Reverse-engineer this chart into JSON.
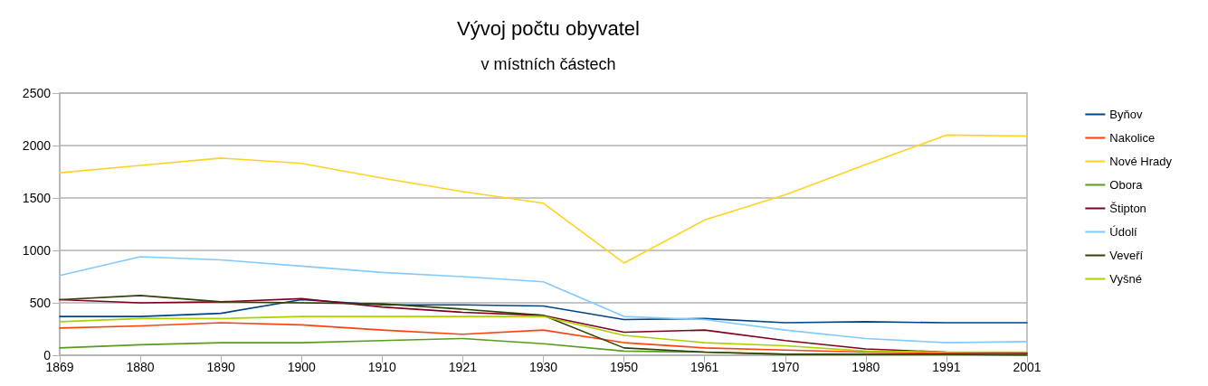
{
  "chart_data": {
    "type": "line",
    "title": "Vývoj počtu obyvatel",
    "subtitle": "v místních částech",
    "categories": [
      "1869",
      "1880",
      "1890",
      "1900",
      "1910",
      "1921",
      "1930",
      "1950",
      "1961",
      "1970",
      "1980",
      "1991",
      "2001"
    ],
    "ylim": [
      0,
      2500
    ],
    "yticks": [
      0,
      500,
      1000,
      1500,
      2000,
      2500
    ],
    "grid": "y",
    "legend": "right",
    "marker": "none",
    "line_style": "solid",
    "series": [
      {
        "name": "Byňov",
        "color": "#004586",
        "values": [
          370,
          370,
          400,
          530,
          480,
          480,
          470,
          340,
          350,
          310,
          320,
          310,
          310
        ]
      },
      {
        "name": "Nakolice",
        "color": "#ff420e",
        "values": [
          260,
          280,
          310,
          290,
          240,
          200,
          240,
          120,
          70,
          50,
          30,
          20,
          20
        ]
      },
      {
        "name": "Nové Hrady",
        "color": "#ffd320",
        "values": [
          1740,
          1810,
          1880,
          1830,
          1690,
          1560,
          1450,
          880,
          1290,
          1530,
          1820,
          2100,
          2090
        ]
      },
      {
        "name": "Obora",
        "color": "#579d1c",
        "values": [
          70,
          100,
          120,
          120,
          140,
          160,
          110,
          40,
          30,
          10,
          10,
          10,
          10
        ]
      },
      {
        "name": "Štipton",
        "color": "#7e0021",
        "values": [
          530,
          500,
          510,
          540,
          460,
          410,
          380,
          220,
          240,
          140,
          60,
          30,
          20
        ]
      },
      {
        "name": "Údolí",
        "color": "#83caff",
        "values": [
          760,
          940,
          910,
          850,
          790,
          750,
          700,
          370,
          340,
          240,
          160,
          120,
          130
        ]
      },
      {
        "name": "Veveří",
        "color": "#314004",
        "values": [
          530,
          570,
          510,
          500,
          490,
          440,
          380,
          70,
          30,
          10,
          10,
          10,
          0
        ]
      },
      {
        "name": "Vyšné",
        "color": "#aecf00",
        "values": [
          320,
          350,
          350,
          370,
          370,
          370,
          370,
          190,
          120,
          90,
          40,
          30,
          30
        ]
      }
    ]
  }
}
